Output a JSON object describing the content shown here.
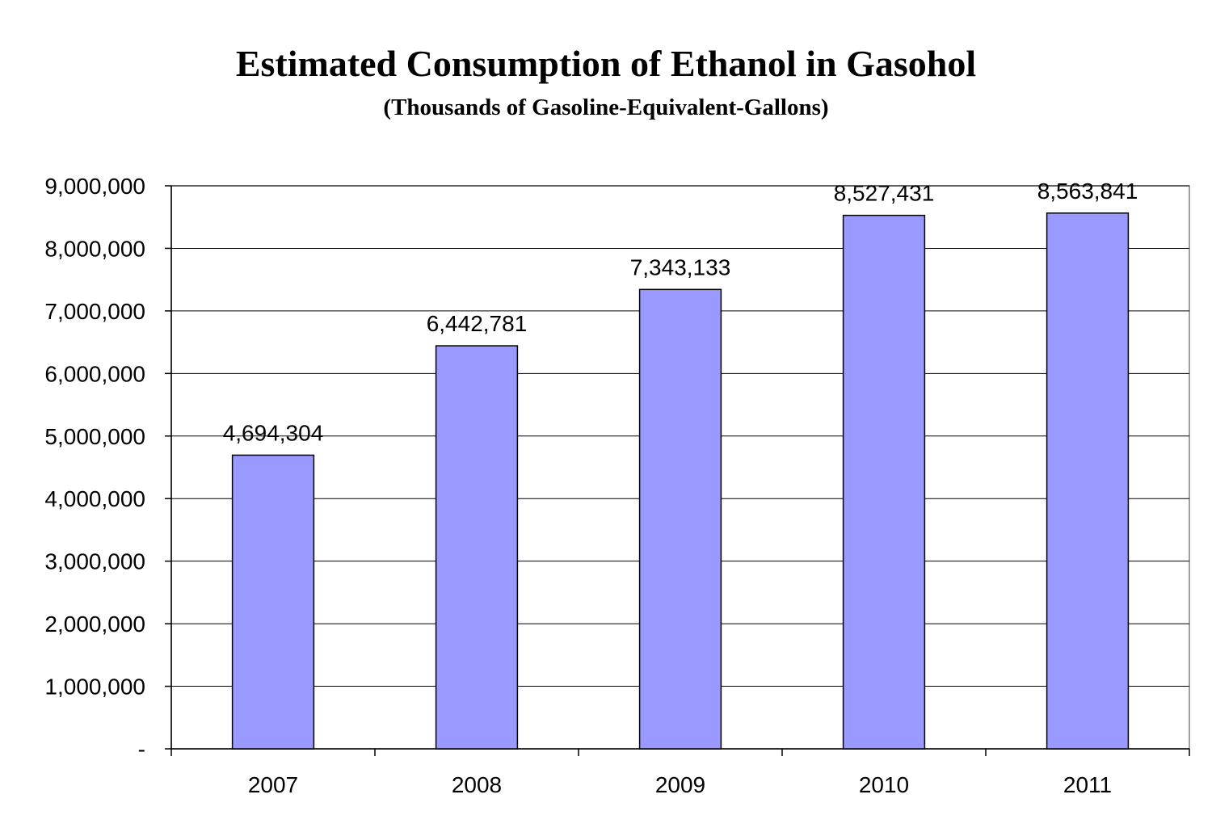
{
  "chart_data": {
    "type": "bar",
    "title": "Estimated Consumption of Ethanol in Gasohol",
    "subtitle": "(Thousands of Gasoline-Equivalent-Gallons)",
    "categories": [
      "2007",
      "2008",
      "2009",
      "2010",
      "2011"
    ],
    "values": [
      4694304,
      6442781,
      7343133,
      8527431,
      8563841
    ],
    "data_labels": [
      "4,694,304",
      "6,442,781",
      "7,343,133",
      "8,527,431",
      "8,563,841"
    ],
    "ylim": [
      0,
      9000000
    ],
    "yticks": [
      0,
      1000000,
      2000000,
      3000000,
      4000000,
      5000000,
      6000000,
      7000000,
      8000000,
      9000000
    ],
    "ytick_labels": [
      "-",
      "1,000,000",
      "2,000,000",
      "3,000,000",
      "4,000,000",
      "5,000,000",
      "6,000,000",
      "7,000,000",
      "8,000,000",
      "9,000,000"
    ],
    "xlabel": "",
    "ylabel": "",
    "grid": true,
    "legend": "none",
    "bar_color": "#9999ff"
  }
}
